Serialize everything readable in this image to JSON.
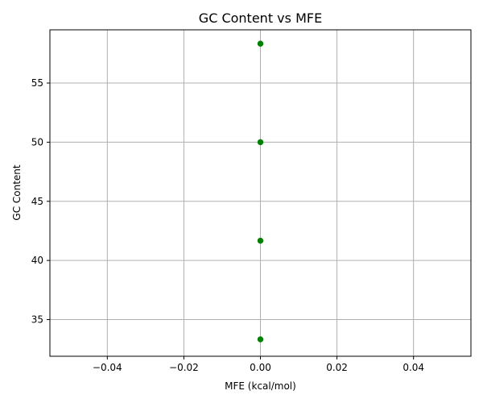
{
  "chart_data": {
    "type": "scatter",
    "title": "GC Content vs MFE",
    "xlabel": "MFE (kcal/mol)",
    "ylabel": "GC Content",
    "xlim": [
      -0.055,
      0.055
    ],
    "ylim": [
      31.9,
      59.5
    ],
    "xticks": [
      -0.04,
      -0.02,
      0.0,
      0.02,
      0.04
    ],
    "xtick_labels": [
      "−0.04",
      "−0.02",
      "0.00",
      "0.02",
      "0.04"
    ],
    "yticks": [
      35,
      40,
      45,
      50,
      55
    ],
    "ytick_labels": [
      "35",
      "40",
      "45",
      "50",
      "55"
    ],
    "grid": true,
    "marker_color": "#008000",
    "points": [
      {
        "x": 0.0,
        "y": 58.33
      },
      {
        "x": 0.0,
        "y": 50.0
      },
      {
        "x": 0.0,
        "y": 41.67
      },
      {
        "x": 0.0,
        "y": 33.33
      }
    ]
  }
}
